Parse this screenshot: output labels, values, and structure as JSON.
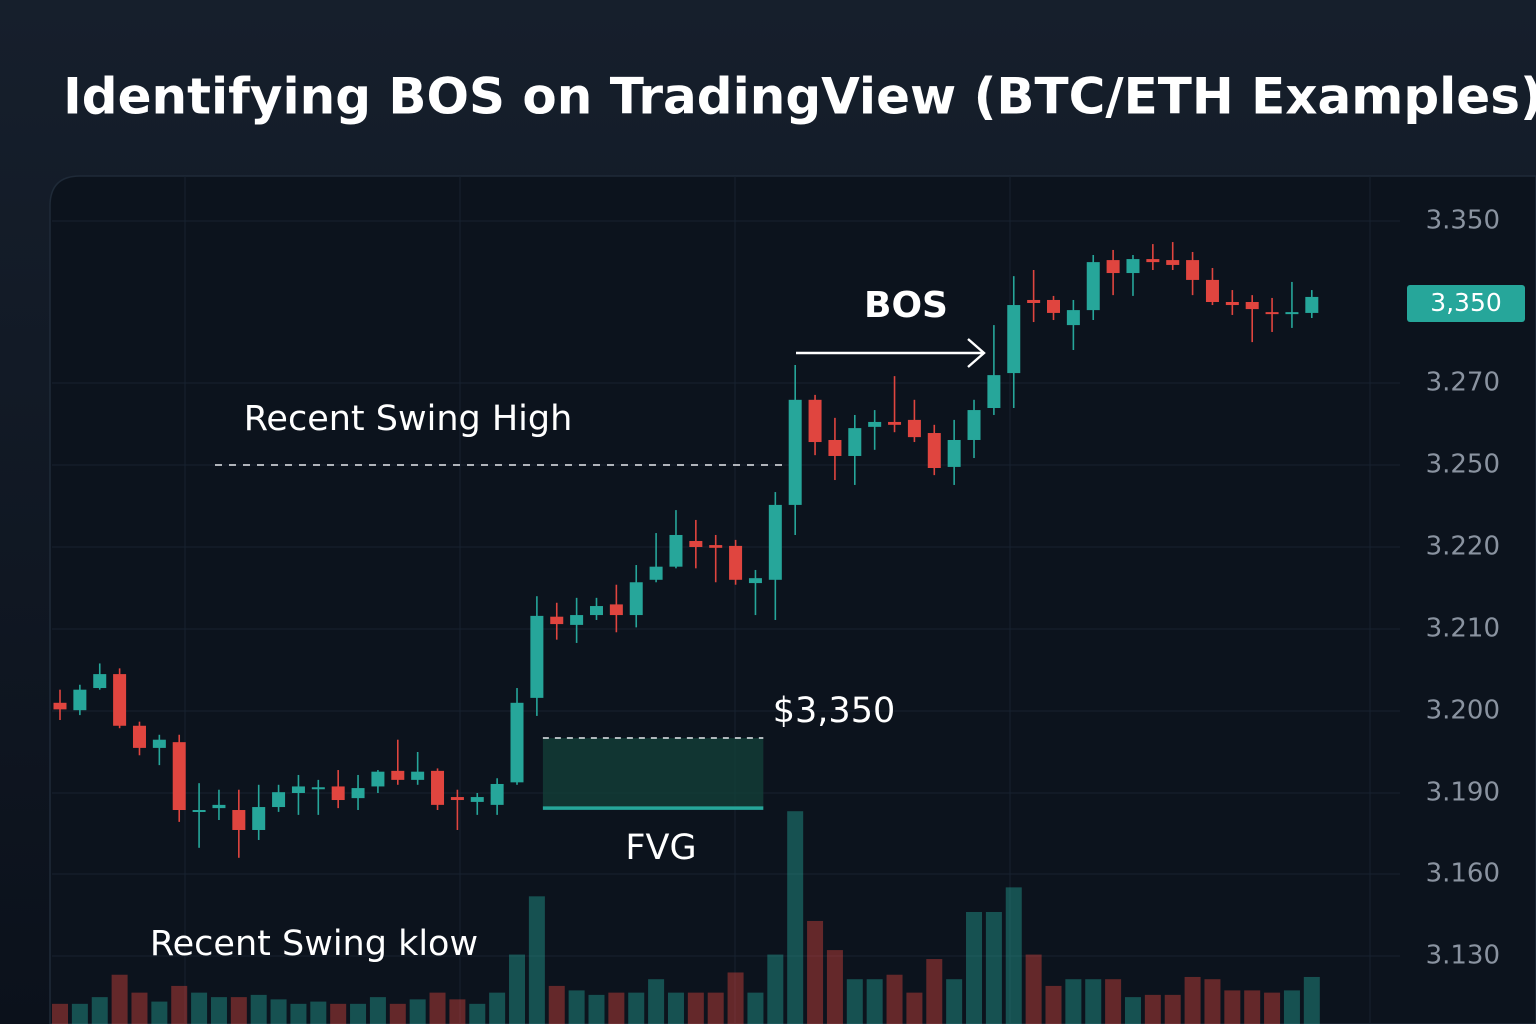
{
  "chart_data": {
    "type": "candlestick",
    "title": "Identifying BOS on TradingView (BTC/ETH Examples)",
    "up_color": "#26a69a",
    "down_color": "#e0453f",
    "grid": true,
    "yticks": [
      {
        "value": 3.35,
        "label": "3.350"
      },
      {
        "value": 3.27,
        "label": "3.270"
      },
      {
        "value": 3.25,
        "label": "3.250"
      },
      {
        "value": 3.22,
        "label": "3.220"
      },
      {
        "value": 3.21,
        "label": "3.210"
      },
      {
        "value": 3.2,
        "label": "3.200"
      },
      {
        "value": 3.19,
        "label": "3.190"
      },
      {
        "value": 3.16,
        "label": "3.160"
      },
      {
        "value": 3.13,
        "label": "3.130"
      }
    ],
    "price_badge": "3,350",
    "open": [
      3.201,
      3.2001,
      3.2028,
      3.2045,
      3.1982,
      3.1955,
      3.1962,
      3.183,
      3.1844,
      3.1837,
      3.1763,
      3.1848,
      3.19,
      3.1905,
      3.1908,
      3.1881,
      3.1908,
      3.1927,
      3.1916,
      3.1927,
      3.1885,
      3.1867,
      3.1856,
      3.1913,
      3.2016,
      3.2115,
      3.2105,
      3.2117,
      3.213,
      3.2117,
      3.216,
      3.2176,
      3.2222,
      3.2207,
      3.2204,
      3.2156,
      3.216,
      3.2354,
      3.2659,
      3.2561,
      3.2522,
      3.2593,
      3.2605,
      3.261,
      3.2578,
      3.2493,
      3.2561,
      3.2639,
      3.2749,
      3.311,
      3.311,
      3.2986,
      3.306,
      3.3307,
      3.3243,
      3.3312,
      3.3307,
      3.3307,
      3.3209,
      3.31,
      3.31,
      3.305,
      3.3041,
      3.3046
    ],
    "high": [
      3.2026,
      3.2032,
      3.2058,
      3.2052,
      3.1987,
      3.1971,
      3.1971,
      3.1912,
      3.1904,
      3.1904,
      3.191,
      3.191,
      3.1922,
      3.1916,
      3.1928,
      3.1922,
      3.1928,
      3.1965,
      3.195,
      3.193,
      3.1904,
      3.19,
      3.1918,
      3.2028,
      3.214,
      3.2132,
      3.2138,
      3.2138,
      3.2154,
      3.2178,
      3.2251,
      3.2335,
      3.2299,
      3.2244,
      3.2226,
      3.2172,
      3.2401,
      3.2789,
      3.2671,
      3.2615,
      3.2622,
      3.2634,
      3.2734,
      3.2659,
      3.2598,
      3.261,
      3.2659,
      3.2986,
      3.3228,
      3.3258,
      3.313,
      3.311,
      3.3332,
      3.3357,
      3.3332,
      3.3386,
      3.3396,
      3.3347,
      3.3268,
      3.3159,
      3.3134,
      3.312,
      3.3199,
      3.3159
    ],
    "low": [
      3.1989,
      3.1995,
      3.2026,
      3.1979,
      3.1946,
      3.1934,
      3.1793,
      3.1697,
      3.18,
      3.166,
      3.1726,
      3.183,
      3.1819,
      3.1819,
      3.1844,
      3.1837,
      3.19,
      3.191,
      3.191,
      3.1837,
      3.1763,
      3.1819,
      3.1819,
      3.191,
      3.1994,
      3.2087,
      3.2083,
      3.2111,
      3.2096,
      3.2102,
      3.2157,
      3.2174,
      3.2174,
      3.2157,
      3.2154,
      3.2117,
      3.2111,
      3.2244,
      3.2524,
      3.2445,
      3.2427,
      3.2537,
      3.258,
      3.2556,
      3.2463,
      3.2427,
      3.2517,
      3.2622,
      3.2639,
      3.3001,
      3.3011,
      3.2863,
      3.3011,
      3.3134,
      3.313,
      3.3258,
      3.3258,
      3.3134,
      3.3085,
      3.3036,
      3.2902,
      3.2952,
      3.2972,
      3.3021
    ],
    "close": [
      3.2002,
      3.2026,
      3.2045,
      3.1982,
      3.1955,
      3.1965,
      3.1837,
      3.1837,
      3.1856,
      3.1763,
      3.1848,
      3.1901,
      3.1908,
      3.1907,
      3.1874,
      3.1906,
      3.1926,
      3.1916,
      3.1926,
      3.1856,
      3.1874,
      3.1885,
      3.1911,
      3.201,
      3.2116,
      3.2106,
      3.2117,
      3.2128,
      3.2117,
      3.2157,
      3.2176,
      3.2244,
      3.22,
      3.2199,
      3.216,
      3.2162,
      3.2354,
      3.2659,
      3.2556,
      3.2522,
      3.259,
      3.2605,
      3.2598,
      3.2568,
      3.2489,
      3.2561,
      3.2634,
      3.2739,
      3.3085,
      3.3095,
      3.3046,
      3.306,
      3.3297,
      3.3243,
      3.3312,
      3.3297,
      3.3283,
      3.3209,
      3.31,
      3.3085,
      3.3065,
      3.3041,
      3.305,
      3.3125
    ],
    "volume": [
      9,
      9,
      12,
      22,
      14,
      10,
      17,
      14,
      12,
      12,
      13,
      11,
      9,
      10,
      9,
      9,
      12,
      9,
      11,
      14,
      11,
      9,
      14,
      31,
      57,
      17,
      15,
      13,
      14,
      14,
      20,
      14,
      14,
      14,
      23,
      14,
      31,
      95,
      46,
      33,
      20,
      20,
      22,
      14,
      29,
      20,
      50,
      50,
      61,
      31,
      17,
      20,
      20,
      20,
      12,
      13,
      13,
      21,
      20,
      15,
      15,
      14,
      15,
      21
    ],
    "annotations": {
      "bos": "BOS",
      "swing_high": {
        "label": "Recent Swing High",
        "level": 3.25
      },
      "swing_low": "Recent Swing klow",
      "fvg": {
        "label": "FVG",
        "price_label": "$3,350",
        "top": 3.1967,
        "bottom": 3.1844
      }
    }
  }
}
